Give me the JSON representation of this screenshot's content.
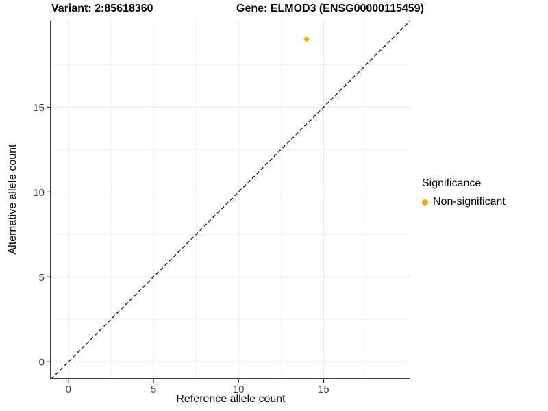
{
  "header": {
    "title_left": "Variant: 2:85618360",
    "title_right": "Gene: ELMOD3 (ENSG00000115459)"
  },
  "chart_data": {
    "type": "scatter",
    "title": "Variant: 2:85618360   Gene: ELMOD3 (ENSG00000115459)",
    "xlabel": "Reference allele count",
    "ylabel": "Alternative allele count",
    "xlim": [
      -1,
      20.1
    ],
    "ylim": [
      -1,
      20.1
    ],
    "xticks": [
      0,
      5,
      10,
      15
    ],
    "yticks": [
      0,
      5,
      10,
      15
    ],
    "xminor": [
      2.5,
      7.5,
      12.5,
      17.5
    ],
    "yminor": [
      2.5,
      7.5,
      12.5,
      17.5
    ],
    "grid": true,
    "identity_line": {
      "style": "dashed",
      "color": "#000000",
      "from": [
        -1,
        -1
      ],
      "to": [
        20.1,
        20.1
      ]
    },
    "series": [
      {
        "name": "Non-significant",
        "color": "#FFA500",
        "points": [
          [
            14,
            19
          ]
        ],
        "point_radius": 3.6
      }
    ],
    "legend": {
      "title": "Significance",
      "position": "right",
      "items": [
        {
          "label": "Non-significant",
          "color": "#FFA500"
        }
      ]
    },
    "colors": {
      "axis_line": "#3f3f3f",
      "tick_mark": "#333333",
      "tick_label": "#404040",
      "grid_major": "#e5e5e5",
      "grid_minor": "#f0f0f0",
      "background": "#ffffff"
    }
  }
}
